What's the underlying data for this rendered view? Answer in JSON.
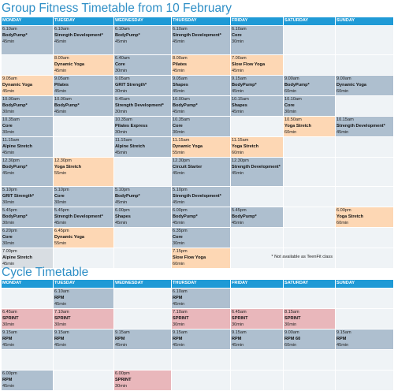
{
  "group": {
    "title": "Group Fitness Timetable from 10 February",
    "days": [
      "MONDAY",
      "TUESDAY",
      "WEDNESDAY",
      "THURSDAY",
      "FRIDAY",
      "SATURDAY",
      "SUNDAY"
    ],
    "rows": [
      [
        {
          "t": "6.10am",
          "n": "BodyPump*",
          "d": "45min",
          "c": "b"
        },
        {
          "t": "6.10am",
          "n": "Strength Development*",
          "d": "45min",
          "c": "b"
        },
        {
          "t": "6.10am",
          "n": "BodyPump*",
          "d": "45min",
          "c": "b"
        },
        {
          "t": "6.10am",
          "n": "Strength Development*",
          "d": "45min",
          "c": "b"
        },
        {
          "t": "6.10am",
          "n": "Core",
          "d": "30min",
          "c": "b"
        },
        {
          "c": "e"
        },
        {
          "c": "e"
        }
      ],
      [
        {
          "c": "e"
        },
        {
          "t": "8.00am",
          "n": "Dynamic Yoga",
          "d": "45min",
          "c": "o"
        },
        {
          "t": "6.40am",
          "n": "Core",
          "d": "30min",
          "c": "b"
        },
        {
          "t": "8.00am",
          "n": "Pilates",
          "d": "45min",
          "c": "o"
        },
        {
          "t": "7.00am",
          "n": "Slow Flow Yoga",
          "d": "45min",
          "c": "o"
        },
        {
          "c": "e"
        },
        {
          "c": "e"
        }
      ],
      [
        {
          "t": "9.05am",
          "n": "Dynamic Yoga",
          "d": "45min",
          "c": "o"
        },
        {
          "t": "9.05am",
          "n": "Pilates",
          "d": "45min",
          "c": "b"
        },
        {
          "t": "9.05am",
          "n": "GRIT Strength*",
          "d": "30min",
          "c": "b"
        },
        {
          "t": "9.05am",
          "n": "Shapes",
          "d": "45min",
          "c": "b"
        },
        {
          "t": "9.15am",
          "n": "BodyPump*",
          "d": "45min",
          "c": "b"
        },
        {
          "t": "9.00am",
          "n": "BodyPump*",
          "d": "60min",
          "c": "b"
        },
        {
          "t": "9.00am",
          "n": "Dynamic Yoga",
          "d": "60min",
          "c": "b"
        }
      ],
      [
        {
          "t": "10.00am",
          "n": "BodyPump*",
          "d": "30min",
          "c": "b"
        },
        {
          "t": "10.00am",
          "n": "BodyPump*",
          "d": "45min",
          "c": "b"
        },
        {
          "t": "9.45am",
          "n": "Strength Development*",
          "d": "30min",
          "c": "b"
        },
        {
          "t": "10.00am",
          "n": "BodyPump*",
          "d": "45min",
          "c": "b"
        },
        {
          "t": "10.15am",
          "n": "Shapes",
          "d": "45min",
          "c": "b"
        },
        {
          "t": "10.10am",
          "n": "Core",
          "d": "30min",
          "c": "b"
        },
        {
          "c": "e"
        }
      ],
      [
        {
          "t": "10.35am",
          "n": "Core",
          "d": "30min",
          "c": "b"
        },
        {
          "c": "e"
        },
        {
          "t": "10.35am",
          "n": "Pilates Express",
          "d": "30min",
          "c": "b"
        },
        {
          "t": "10.35am",
          "n": "Core",
          "d": "30min",
          "c": "b"
        },
        {
          "c": "e"
        },
        {
          "t": "10.50am",
          "n": "Yoga Stretch",
          "d": "60min",
          "c": "o"
        },
        {
          "t": "10.15am",
          "n": "Strength Development*",
          "d": "45min",
          "c": "b"
        }
      ],
      [
        {
          "t": "11.15am",
          "n": "Alpine Stretch",
          "d": "45min",
          "c": "b"
        },
        {
          "c": "e"
        },
        {
          "t": "11.15am",
          "n": "Alpine Stretch",
          "d": "45min",
          "c": "b"
        },
        {
          "t": "11.15am",
          "n": "Dynamic Yoga",
          "d": "55min",
          "c": "o"
        },
        {
          "t": "11.15am",
          "n": "Yoga Stretch",
          "d": "60min",
          "c": "o"
        },
        {
          "c": "e"
        },
        {
          "c": "e"
        }
      ],
      [
        {
          "t": "12.30pm",
          "n": "BodyPump*",
          "d": "45min",
          "c": "b"
        },
        {
          "t": "12.30pm",
          "n": "Yoga Stretch",
          "d": "55min",
          "c": "o"
        },
        {
          "c": "e"
        },
        {
          "t": "12.30pm",
          "n": "Circuit Starter",
          "d": "45min",
          "c": "b"
        },
        {
          "t": "12.30pm",
          "n": "Strength Development*",
          "d": "45min",
          "c": "b"
        },
        {
          "c": "e"
        },
        {
          "c": "e"
        }
      ],
      [
        {
          "t": "5.10pm",
          "n": "GRIT Strength*",
          "d": "30min",
          "c": "b"
        },
        {
          "t": "5.10pm",
          "n": "Core",
          "d": "30min",
          "c": "b"
        },
        {
          "t": "5.10pm",
          "n": "BodyPump*",
          "d": "45min",
          "c": "b"
        },
        {
          "t": "5.10pm",
          "n": "Strength Development*",
          "d": "45min",
          "c": "b"
        },
        {
          "c": "e"
        },
        {
          "c": "e"
        },
        {
          "c": "e"
        }
      ],
      [
        {
          "t": "5.45pm",
          "n": "BodyPump*",
          "d": "30min",
          "c": "b"
        },
        {
          "t": "5.45pm",
          "n": "Strength Development*",
          "d": "45min",
          "c": "b"
        },
        {
          "t": "6.00pm",
          "n": "Shapes",
          "d": "45min",
          "c": "b"
        },
        {
          "t": "6.00pm",
          "n": "BodyPump*",
          "d": "45min",
          "c": "b"
        },
        {
          "t": "5.45pm",
          "n": "BodyPump*",
          "d": "45min",
          "c": "b"
        },
        {
          "c": "e"
        },
        {
          "t": "6.00pm",
          "n": "Yoga Stretch",
          "d": "60min",
          "c": "o"
        }
      ],
      [
        {
          "t": "6.20pm",
          "n": "Core",
          "d": "30min",
          "c": "b"
        },
        {
          "t": "6.45pm",
          "n": "Dynamic Yoga",
          "d": "55min",
          "c": "o"
        },
        {
          "c": "e"
        },
        {
          "t": "6.35pm",
          "n": "Core",
          "d": "30min",
          "c": "b"
        },
        {
          "c": "e"
        },
        {
          "c": "e"
        },
        {
          "c": "e"
        }
      ],
      [
        {
          "t": "7.00pm",
          "n": "Alpine Stretch",
          "d": "45min",
          "c": "g"
        },
        {
          "c": "e"
        },
        {
          "c": "e"
        },
        {
          "t": "7.15pm",
          "n": "Slow Flow Yoga",
          "d": "60min",
          "c": "o"
        },
        {
          "c": "e"
        },
        {
          "c": "e"
        },
        {
          "c": "e"
        }
      ]
    ],
    "note": "* Not available as TeenFit class"
  },
  "cycle": {
    "title": "Cycle Timetable",
    "days": [
      "MONDAY",
      "TUESDAY",
      "WEDNESDAY",
      "THURSDAY",
      "FRIDAY",
      "SATURDAY",
      "SUNDAY"
    ],
    "rows": [
      [
        {
          "c": "e"
        },
        {
          "t": "6.10am",
          "n": "RPM",
          "d": "45min",
          "c": "b"
        },
        {
          "c": "e"
        },
        {
          "t": "6.10am",
          "n": "RPM",
          "d": "45min",
          "c": "b"
        },
        {
          "c": "e"
        },
        {
          "c": "e"
        },
        {
          "c": "e"
        }
      ],
      [
        {
          "t": "6.45am",
          "n": "SPRINT",
          "d": "30min",
          "c": "p"
        },
        {
          "t": "7.10am",
          "n": "SPRINT",
          "d": "30min",
          "c": "p"
        },
        {
          "c": "e"
        },
        {
          "t": "7.10am",
          "n": "SPRINT",
          "d": "30min",
          "c": "p"
        },
        {
          "t": "6.45am",
          "n": "SPRINT",
          "d": "30min",
          "c": "p"
        },
        {
          "t": "8.15am",
          "n": "SPRINT",
          "d": "30min",
          "c": "p"
        },
        {
          "c": "e"
        }
      ],
      [
        {
          "t": "9.15am",
          "n": "RPM",
          "d": "45min",
          "c": "b"
        },
        {
          "t": "9.15am",
          "n": "RPM",
          "d": "45min",
          "c": "b"
        },
        {
          "t": "9.15am",
          "n": "RPM",
          "d": "45min",
          "c": "b"
        },
        {
          "t": "9.15am",
          "n": "RPM",
          "d": "45min",
          "c": "b"
        },
        {
          "t": "9.15am",
          "n": "RPM",
          "d": "45min",
          "c": "b"
        },
        {
          "t": "9.00am",
          "n": "RPM 60",
          "d": "60min",
          "c": "b"
        },
        {
          "t": "9.15am",
          "n": "RPM",
          "d": "45min",
          "c": "b"
        }
      ],
      [
        {
          "c": "e"
        },
        {
          "c": "e"
        },
        {
          "c": "e"
        },
        {
          "c": "e"
        },
        {
          "c": "e"
        },
        {
          "c": "e"
        },
        {
          "c": "e"
        }
      ],
      [
        {
          "t": "6.00pm",
          "n": "RPM",
          "d": "45min",
          "c": "b"
        },
        {
          "c": "e"
        },
        {
          "t": "6.00pm",
          "n": "SPRINT",
          "d": "30min",
          "c": "p"
        },
        {
          "c": "e"
        },
        {
          "c": "e"
        },
        {
          "c": "e"
        },
        {
          "c": "e"
        }
      ]
    ]
  }
}
